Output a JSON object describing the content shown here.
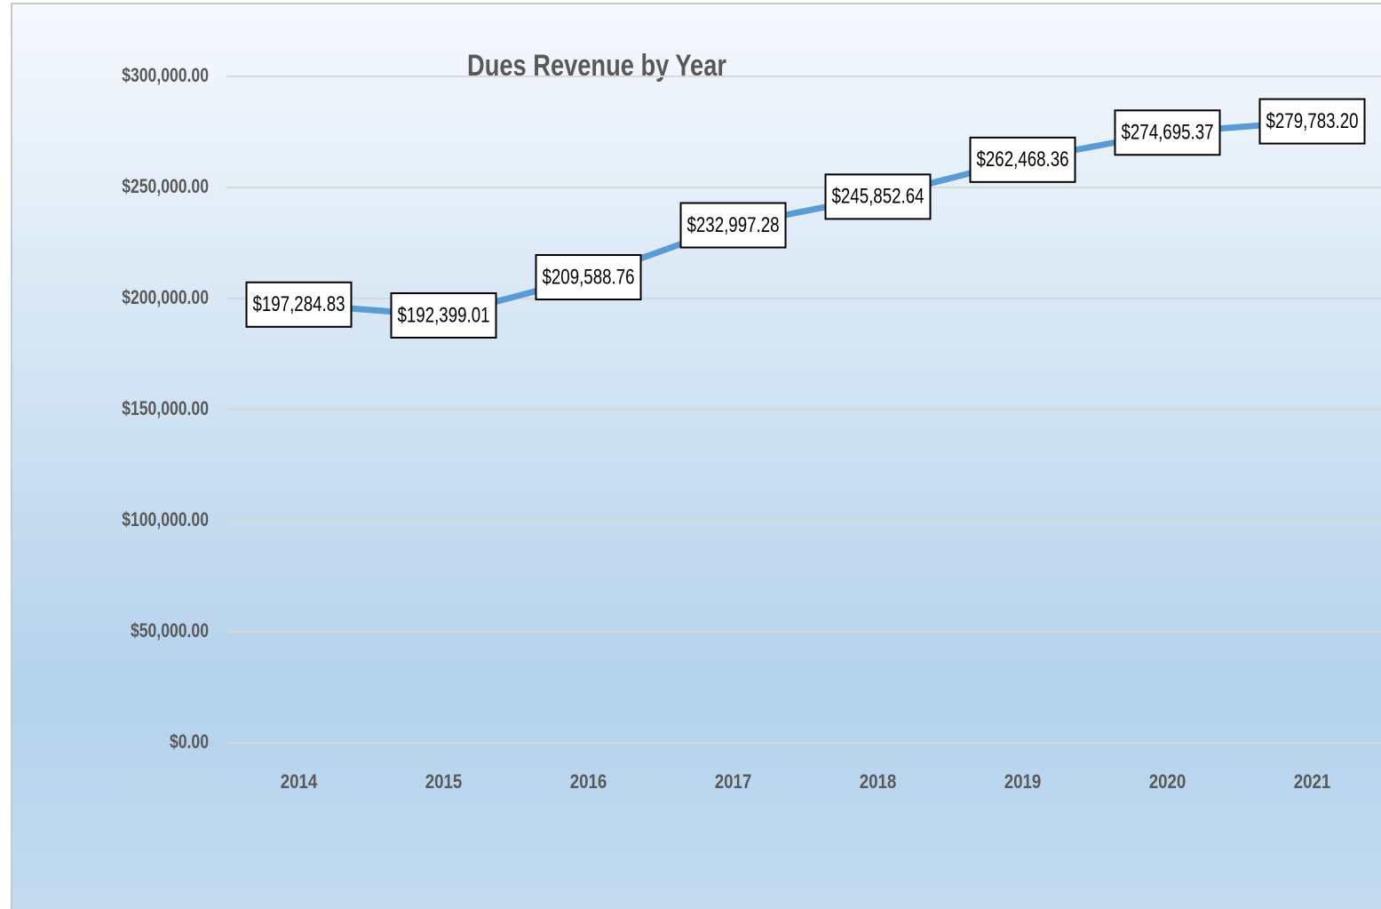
{
  "chart_data": {
    "type": "line",
    "title": "Dues Revenue by Year",
    "categories": [
      "2014",
      "2015",
      "2016",
      "2017",
      "2018",
      "2019",
      "2020",
      "2021"
    ],
    "series": [
      {
        "name": "Dues Revenue",
        "color": "#5b9bd5",
        "values": [
          197284.83,
          192399.01,
          209588.76,
          232997.28,
          245852.64,
          262468.36,
          274695.37,
          279783.2
        ],
        "value_labels": [
          "$197,284.83",
          "$192,399.01",
          "$209,588.76",
          "$232,997.28",
          "$245,852.64",
          "$262,468.36",
          "$274,695.37",
          "$279,783.20"
        ]
      }
    ],
    "ylim": [
      0,
      300000
    ],
    "yticks": [
      {
        "value": 0,
        "label": "$0.00"
      },
      {
        "value": 50000,
        "label": "$50,000.00"
      },
      {
        "value": 100000,
        "label": "$100,000.00"
      },
      {
        "value": 150000,
        "label": "$150,000.00"
      },
      {
        "value": 200000,
        "label": "$200,000.00"
      },
      {
        "value": 250000,
        "label": "$250,000.00"
      },
      {
        "value": 300000,
        "label": "$300,000.00"
      }
    ],
    "grid": true
  }
}
